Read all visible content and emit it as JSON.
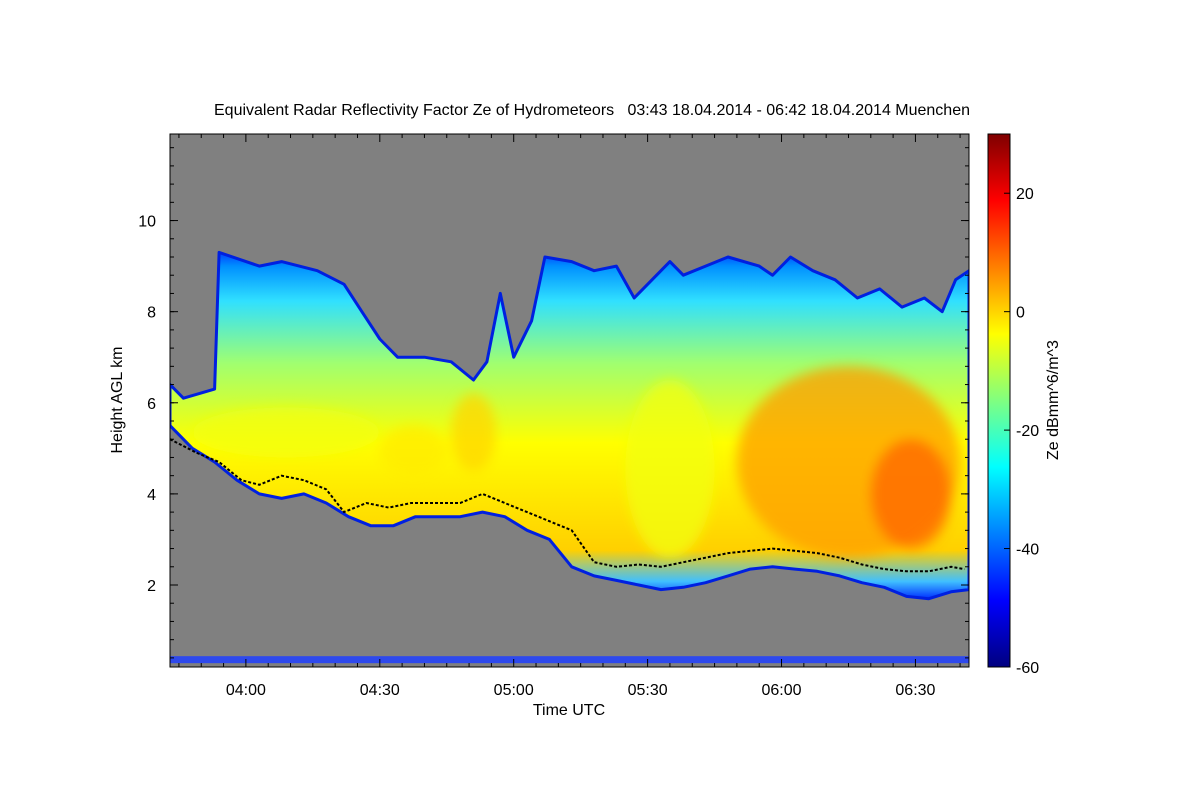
{
  "chart_data": {
    "type": "heatmap",
    "title": "Equivalent Radar Reflectivity Factor Ze of Hydrometeors   03:43 18.04.2014 - 06:42 18.04.2014 Muenchen",
    "xlabel": "Time UTC",
    "ylabel": "Height AGL km",
    "xlim_minutes_utc": [
      223,
      402
    ],
    "ylim_km": [
      0.2,
      11.9
    ],
    "x_ticks": [
      {
        "minute": 240,
        "label": "04:00"
      },
      {
        "minute": 270,
        "label": "04:30"
      },
      {
        "minute": 300,
        "label": "05:00"
      },
      {
        "minute": 330,
        "label": "05:30"
      },
      {
        "minute": 360,
        "label": "06:00"
      },
      {
        "minute": 390,
        "label": "06:30"
      }
    ],
    "y_ticks": [
      {
        "km": 2,
        "label": "2"
      },
      {
        "km": 4,
        "label": "4"
      },
      {
        "km": 6,
        "label": "6"
      },
      {
        "km": 8,
        "label": "8"
      },
      {
        "km": 10,
        "label": "10"
      }
    ],
    "colorbar": {
      "label": "Ze dBmm^6/m^3",
      "range": [
        -60,
        30
      ],
      "ticks": [
        {
          "value": -60,
          "label": "-60"
        },
        {
          "value": -40,
          "label": "-40"
        },
        {
          "value": -20,
          "label": "-20"
        },
        {
          "value": 0,
          "label": "0"
        },
        {
          "value": 20,
          "label": "20"
        }
      ],
      "colormap": [
        "#00007f",
        "#0000ff",
        "#0080ff",
        "#00ffff",
        "#80ff80",
        "#ffff00",
        "#ff8000",
        "#ff0000",
        "#7f0000"
      ]
    },
    "background_color": "#808080",
    "melting_layer_color": "#000000",
    "cloud_top_km": [
      [
        223,
        6.4
      ],
      [
        226,
        6.1
      ],
      [
        233,
        6.3
      ],
      [
        234,
        9.3
      ],
      [
        243,
        9.0
      ],
      [
        248,
        9.1
      ],
      [
        256,
        8.9
      ],
      [
        262,
        8.6
      ],
      [
        266,
        8.0
      ],
      [
        270,
        7.4
      ],
      [
        274,
        7.0
      ],
      [
        280,
        7.0
      ],
      [
        286,
        6.9
      ],
      [
        291,
        6.5
      ],
      [
        294,
        6.9
      ],
      [
        297,
        8.4
      ],
      [
        300,
        7.0
      ],
      [
        304,
        7.8
      ],
      [
        307,
        9.2
      ],
      [
        313,
        9.1
      ],
      [
        318,
        8.9
      ],
      [
        323,
        9.0
      ],
      [
        327,
        8.3
      ],
      [
        330,
        8.6
      ],
      [
        335,
        9.1
      ],
      [
        338,
        8.8
      ],
      [
        343,
        9.0
      ],
      [
        348,
        9.2
      ],
      [
        355,
        9.0
      ],
      [
        358,
        8.8
      ],
      [
        362,
        9.2
      ],
      [
        367,
        8.9
      ],
      [
        372,
        8.7
      ],
      [
        377,
        8.3
      ],
      [
        382,
        8.5
      ],
      [
        387,
        8.1
      ],
      [
        392,
        8.3
      ],
      [
        396,
        8.0
      ],
      [
        399,
        8.7
      ],
      [
        402,
        8.9
      ]
    ],
    "cloud_base_km": [
      [
        223,
        5.5
      ],
      [
        228,
        5.0
      ],
      [
        233,
        4.7
      ],
      [
        238,
        4.3
      ],
      [
        243,
        4.0
      ],
      [
        248,
        3.9
      ],
      [
        253,
        4.0
      ],
      [
        258,
        3.8
      ],
      [
        263,
        3.5
      ],
      [
        268,
        3.3
      ],
      [
        273,
        3.3
      ],
      [
        278,
        3.5
      ],
      [
        283,
        3.5
      ],
      [
        288,
        3.5
      ],
      [
        293,
        3.6
      ],
      [
        298,
        3.5
      ],
      [
        303,
        3.2
      ],
      [
        308,
        3.0
      ],
      [
        313,
        2.4
      ],
      [
        318,
        2.2
      ],
      [
        323,
        2.1
      ],
      [
        328,
        2.0
      ],
      [
        333,
        1.9
      ],
      [
        338,
        1.95
      ],
      [
        343,
        2.05
      ],
      [
        348,
        2.2
      ],
      [
        353,
        2.35
      ],
      [
        358,
        2.4
      ],
      [
        363,
        2.35
      ],
      [
        368,
        2.3
      ],
      [
        373,
        2.2
      ],
      [
        378,
        2.05
      ],
      [
        383,
        1.95
      ],
      [
        388,
        1.75
      ],
      [
        393,
        1.7
      ],
      [
        398,
        1.85
      ],
      [
        402,
        1.9
      ]
    ],
    "melting_layer_km": [
      [
        223,
        5.2
      ],
      [
        229,
        4.9
      ],
      [
        234,
        4.7
      ],
      [
        239,
        4.3
      ],
      [
        243,
        4.2
      ],
      [
        248,
        4.4
      ],
      [
        253,
        4.3
      ],
      [
        258,
        4.1
      ],
      [
        262,
        3.6
      ],
      [
        267,
        3.8
      ],
      [
        272,
        3.7
      ],
      [
        277,
        3.8
      ],
      [
        283,
        3.8
      ],
      [
        288,
        3.8
      ],
      [
        293,
        4.0
      ],
      [
        298,
        3.8
      ],
      [
        303,
        3.6
      ],
      [
        308,
        3.4
      ],
      [
        313,
        3.2
      ],
      [
        318,
        2.5
      ],
      [
        323,
        2.4
      ],
      [
        328,
        2.45
      ],
      [
        333,
        2.4
      ],
      [
        338,
        2.5
      ],
      [
        343,
        2.6
      ],
      [
        348,
        2.7
      ],
      [
        353,
        2.75
      ],
      [
        358,
        2.8
      ],
      [
        363,
        2.75
      ],
      [
        368,
        2.7
      ],
      [
        373,
        2.6
      ],
      [
        378,
        2.45
      ],
      [
        383,
        2.35
      ],
      [
        388,
        2.3
      ],
      [
        393,
        2.3
      ],
      [
        398,
        2.4
      ],
      [
        401,
        2.35
      ]
    ],
    "core_features": [
      {
        "t_start": 286,
        "t_end": 296,
        "h_bottom": 4.5,
        "h_top": 6.2,
        "ze": 0
      },
      {
        "t_start": 270,
        "t_end": 285,
        "h_bottom": 4.4,
        "h_top": 5.5,
        "ze": -2
      },
      {
        "t_start": 228,
        "t_end": 270,
        "h_bottom": 4.8,
        "h_top": 5.9,
        "ze": -5
      },
      {
        "t_start": 325,
        "t_end": 345,
        "h_bottom": 2.6,
        "h_top": 6.5,
        "ze": -5
      },
      {
        "t_start": 350,
        "t_end": 400,
        "h_bottom": 2.6,
        "h_top": 6.8,
        "ze": 5
      },
      {
        "t_start": 380,
        "t_end": 398,
        "h_bottom": 2.8,
        "h_top": 5.2,
        "ze": 10
      }
    ],
    "surface_clutter_km": 0.35
  }
}
